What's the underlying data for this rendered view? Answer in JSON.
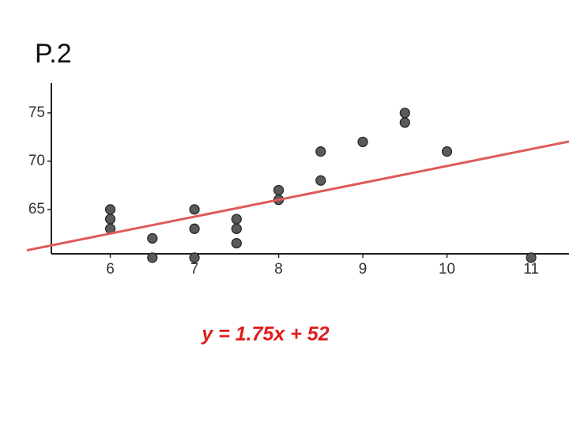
{
  "title": "P.2",
  "chart_data": {
    "type": "scatter",
    "x": [
      6,
      6,
      6,
      6.5,
      6.5,
      7,
      7,
      7,
      7.5,
      7.5,
      7.5,
      8,
      8,
      8.5,
      8.5,
      9,
      9.5,
      9.5,
      10,
      11
    ],
    "y": [
      65,
      64,
      63,
      62,
      60,
      65,
      63,
      60,
      64,
      63,
      61.5,
      67,
      66,
      71,
      68,
      72,
      75,
      74,
      71,
      60
    ],
    "color": "#5a5a5a",
    "xlim": [
      5.3,
      11.45
    ],
    "ylim": [
      60.4,
      78.1
    ],
    "xticks": [
      6,
      7,
      8,
      9,
      10,
      11
    ],
    "yticks": [
      65,
      70,
      75
    ],
    "trendline": {
      "slope": 1.75,
      "intercept": 52,
      "color": "#e05a5a"
    },
    "annotation": "y = 1.75x + 52"
  }
}
